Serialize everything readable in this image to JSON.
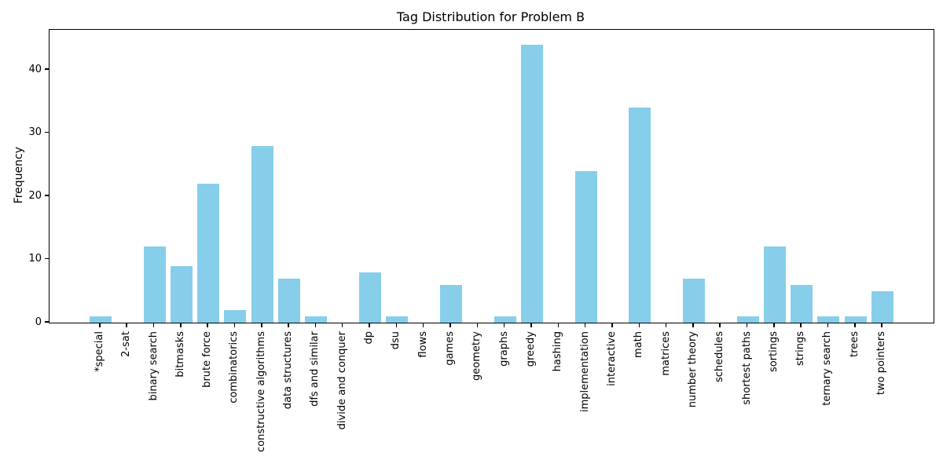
{
  "title": "Tag Distribution for Problem B",
  "chart_data": {
    "type": "bar",
    "title": "Tag Distribution for Problem B",
    "xlabel": "",
    "ylabel": "Frequency",
    "categories": [
      "*special",
      "2-sat",
      "binary search",
      "bitmasks",
      "brute force",
      "combinatorics",
      "constructive algorithms",
      "data structures",
      "dfs and similar",
      "divide and conquer",
      "dp",
      "dsu",
      "flows",
      "games",
      "geometry",
      "graphs",
      "greedy",
      "hashing",
      "implementation",
      "interactive",
      "math",
      "matrices",
      "number theory",
      "schedules",
      "shortest paths",
      "sortings",
      "strings",
      "ternary search",
      "trees",
      "two pointers"
    ],
    "values": [
      1,
      0,
      12,
      9,
      22,
      2,
      28,
      7,
      1,
      0,
      8,
      1,
      0,
      6,
      0,
      1,
      44,
      0,
      24,
      0,
      34,
      0,
      7,
      0,
      1,
      12,
      6,
      1,
      1,
      5
    ],
    "yticks": [
      0,
      10,
      20,
      30,
      40
    ],
    "ylim": [
      0,
      46.3
    ],
    "bar_color": "#87CEEB",
    "grid": false,
    "legend": null,
    "x_tick_label_rotation": 90
  }
}
